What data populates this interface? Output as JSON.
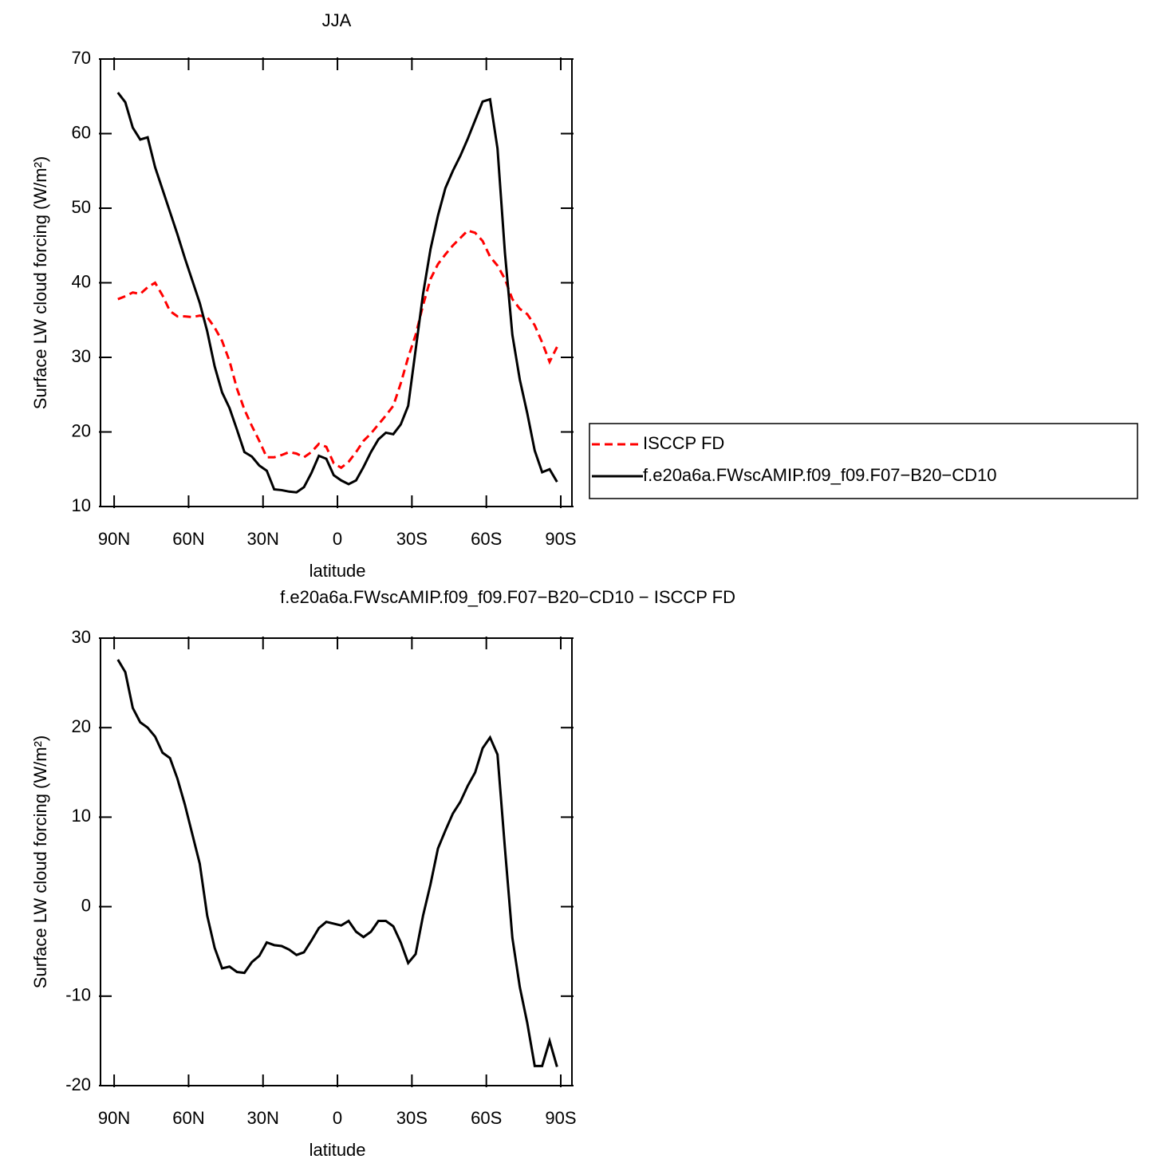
{
  "chart_data": [
    {
      "type": "line",
      "title": "JJA",
      "xlabel": "latitude",
      "ylabel": "Surface LW cloud forcing (W/m²)",
      "x": [
        88.5,
        85.5,
        82.5,
        79.5,
        76.5,
        73.5,
        70.5,
        67.5,
        64.5,
        61.5,
        58.5,
        55.5,
        52.5,
        49.5,
        46.5,
        43.5,
        40.5,
        37.5,
        34.5,
        31.5,
        28.5,
        25.5,
        22.5,
        19.5,
        16.5,
        13.5,
        10.5,
        7.5,
        4.5,
        1.5,
        -1.5,
        -4.5,
        -7.5,
        -10.5,
        -13.5,
        -16.5,
        -19.5,
        -22.5,
        -25.5,
        -28.5,
        -31.5,
        -34.5,
        -37.5,
        -40.5,
        -43.5,
        -46.5,
        -49.5,
        -52.5,
        -55.5,
        -58.5,
        -61.5,
        -64.5,
        -67.5,
        -70.5,
        -73.5,
        -76.5,
        -79.5,
        -82.5,
        -85.5,
        -88.5
      ],
      "series": [
        {
          "name": "ISCCP FD",
          "color": "#ff0000",
          "linestyle": "dashed",
          "values": [
            37.8,
            38.2,
            38.7,
            38.5,
            39.4,
            40.0,
            38.3,
            36.2,
            35.5,
            35.5,
            35.4,
            35.6,
            35.4,
            34.0,
            32.2,
            29.5,
            25.8,
            23.0,
            20.8,
            18.8,
            16.6,
            16.6,
            16.9,
            17.3,
            17.1,
            16.6,
            17.3,
            18.4,
            18.0,
            15.8,
            15.2,
            16.0,
            17.3,
            18.8,
            19.8,
            21.0,
            22.2,
            23.5,
            26.5,
            30.0,
            33.0,
            37.0,
            40.5,
            42.5,
            43.8,
            45.0,
            46.0,
            47.0,
            46.7,
            45.6,
            43.5,
            42.3,
            40.5,
            37.8,
            36.5,
            35.8,
            34.3,
            32.0,
            29.4,
            31.4
          ]
        },
        {
          "name": "f.e20a6a.FWscAMIP.f09_f09.F07−B20−CD10",
          "color": "#000000",
          "linestyle": "solid",
          "values": [
            65.5,
            64.2,
            60.8,
            59.2,
            59.5,
            55.5,
            52.5,
            49.5,
            46.5,
            43.3,
            40.3,
            37.3,
            33.5,
            28.8,
            25.3,
            23.2,
            20.3,
            17.3,
            16.7,
            15.5,
            14.8,
            12.3,
            12.2,
            12.0,
            11.9,
            12.6,
            14.5,
            16.8,
            16.4,
            14.2,
            13.5,
            13.0,
            13.5,
            15.3,
            17.3,
            19.0,
            19.9,
            19.7,
            21.0,
            23.5,
            31.0,
            38.5,
            44.5,
            49.0,
            52.7,
            55.0,
            57.0,
            59.3,
            61.8,
            64.3,
            64.6,
            58.0,
            44.0,
            33.0,
            27.0,
            22.5,
            17.5,
            14.6,
            15.0,
            13.3
          ]
        }
      ],
      "xlim": [
        95.5,
        -94.5
      ],
      "xticks": [
        {
          "value": 90,
          "label": "90N"
        },
        {
          "value": 60,
          "label": "60N"
        },
        {
          "value": 30,
          "label": "30N"
        },
        0,
        {
          "value": -30,
          "label": "30S"
        },
        {
          "value": -60,
          "label": "60S"
        },
        {
          "value": -90,
          "label": "90S"
        }
      ],
      "ylim": [
        10,
        70
      ],
      "yticks": [
        10,
        20,
        30,
        40,
        50,
        60,
        70
      ],
      "legend": "right"
    },
    {
      "type": "line",
      "title": "f.e20a6a.FWscAMIP.f09_f09.F07−B20−CD10 − ISCCP FD",
      "xlabel": "latitude",
      "ylabel": "Surface LW cloud forcing (W/m²)",
      "x": [
        88.5,
        85.5,
        82.5,
        79.5,
        76.5,
        73.5,
        70.5,
        67.5,
        64.5,
        61.5,
        58.5,
        55.5,
        52.5,
        49.5,
        46.5,
        43.5,
        40.5,
        37.5,
        34.5,
        31.5,
        28.5,
        25.5,
        22.5,
        19.5,
        16.5,
        13.5,
        10.5,
        7.5,
        4.5,
        1.5,
        -1.5,
        -4.5,
        -7.5,
        -10.5,
        -13.5,
        -16.5,
        -19.5,
        -22.5,
        -25.5,
        -28.5,
        -31.5,
        -34.5,
        -37.5,
        -40.5,
        -43.5,
        -46.5,
        -49.5,
        -52.5,
        -55.5,
        -58.5,
        -61.5,
        -64.5,
        -67.5,
        -70.5,
        -73.5,
        -76.5,
        -79.5,
        -82.5,
        -85.5,
        -88.5
      ],
      "series": [
        {
          "color": "#000000",
          "linestyle": "solid",
          "values": [
            27.6,
            26.2,
            22.2,
            20.6,
            20.0,
            19.0,
            17.2,
            16.6,
            14.3,
            11.4,
            8.1,
            4.8,
            -1.0,
            -4.6,
            -6.9,
            -6.7,
            -7.3,
            -7.4,
            -6.2,
            -5.5,
            -4.0,
            -4.3,
            -4.4,
            -4.8,
            -5.4,
            -5.1,
            -3.8,
            -2.4,
            -1.7,
            -1.9,
            -2.1,
            -1.6,
            -2.8,
            -3.4,
            -2.8,
            -1.6,
            -1.6,
            -2.2,
            -4.0,
            -6.3,
            -5.3,
            -1.0,
            2.5,
            6.5,
            8.5,
            10.4,
            11.7,
            13.5,
            15.0,
            17.7,
            18.9,
            17.0,
            6.5,
            -3.5,
            -9.0,
            -13.0,
            -17.8,
            -17.8,
            -15.0,
            -17.9
          ]
        }
      ],
      "xlim": [
        95.5,
        -94.5
      ],
      "xticks": [
        {
          "value": 90,
          "label": "90N"
        },
        {
          "value": 60,
          "label": "60N"
        },
        {
          "value": 30,
          "label": "30N"
        },
        0,
        {
          "value": -30,
          "label": "30S"
        },
        {
          "value": -60,
          "label": "60S"
        },
        {
          "value": -90,
          "label": "90S"
        }
      ],
      "ylim": [
        -20,
        30
      ],
      "yticks": [
        -20,
        -10,
        0,
        10,
        20,
        30
      ]
    }
  ]
}
